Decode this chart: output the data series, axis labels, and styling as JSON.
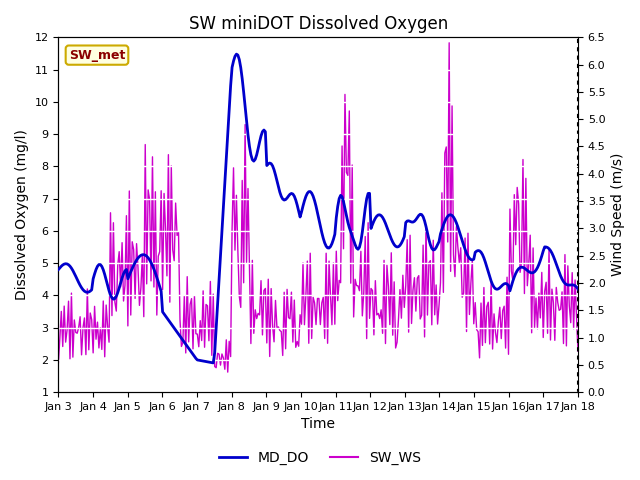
{
  "title": "SW miniDOT Dissolved Oxygen",
  "ylabel_left": "Dissolved Oxygen (mg/l)",
  "ylabel_right": "Wind Speed (m/s)",
  "xlabel": "Time",
  "annotation_text": "SW_met",
  "ylim_left": [
    1.0,
    12.0
  ],
  "ylim_right": [
    0.0,
    6.5
  ],
  "x_tick_labels": [
    "Jan 3",
    "Jan 4",
    "Jan 5",
    "Jan 6",
    "Jan 7",
    "Jan 8",
    "Jan 9",
    "Jan 10",
    "Jan 11",
    "Jan 12",
    "Jan 13",
    "Jan 14",
    "Jan 15",
    "Jan 16",
    "Jan 17",
    "Jan 18"
  ],
  "plot_bg_color": "#e8e8e8",
  "md_do_color": "#0000cc",
  "sw_ws_color": "#cc00cc",
  "legend_labels": [
    "MD_DO",
    "SW_WS"
  ],
  "title_fontsize": 12,
  "axis_label_fontsize": 10,
  "tick_label_fontsize": 8,
  "annotation_fontsize": 9,
  "md_do_linewidth": 2.0,
  "sw_ws_linewidth": 1.0,
  "n_points": 360
}
